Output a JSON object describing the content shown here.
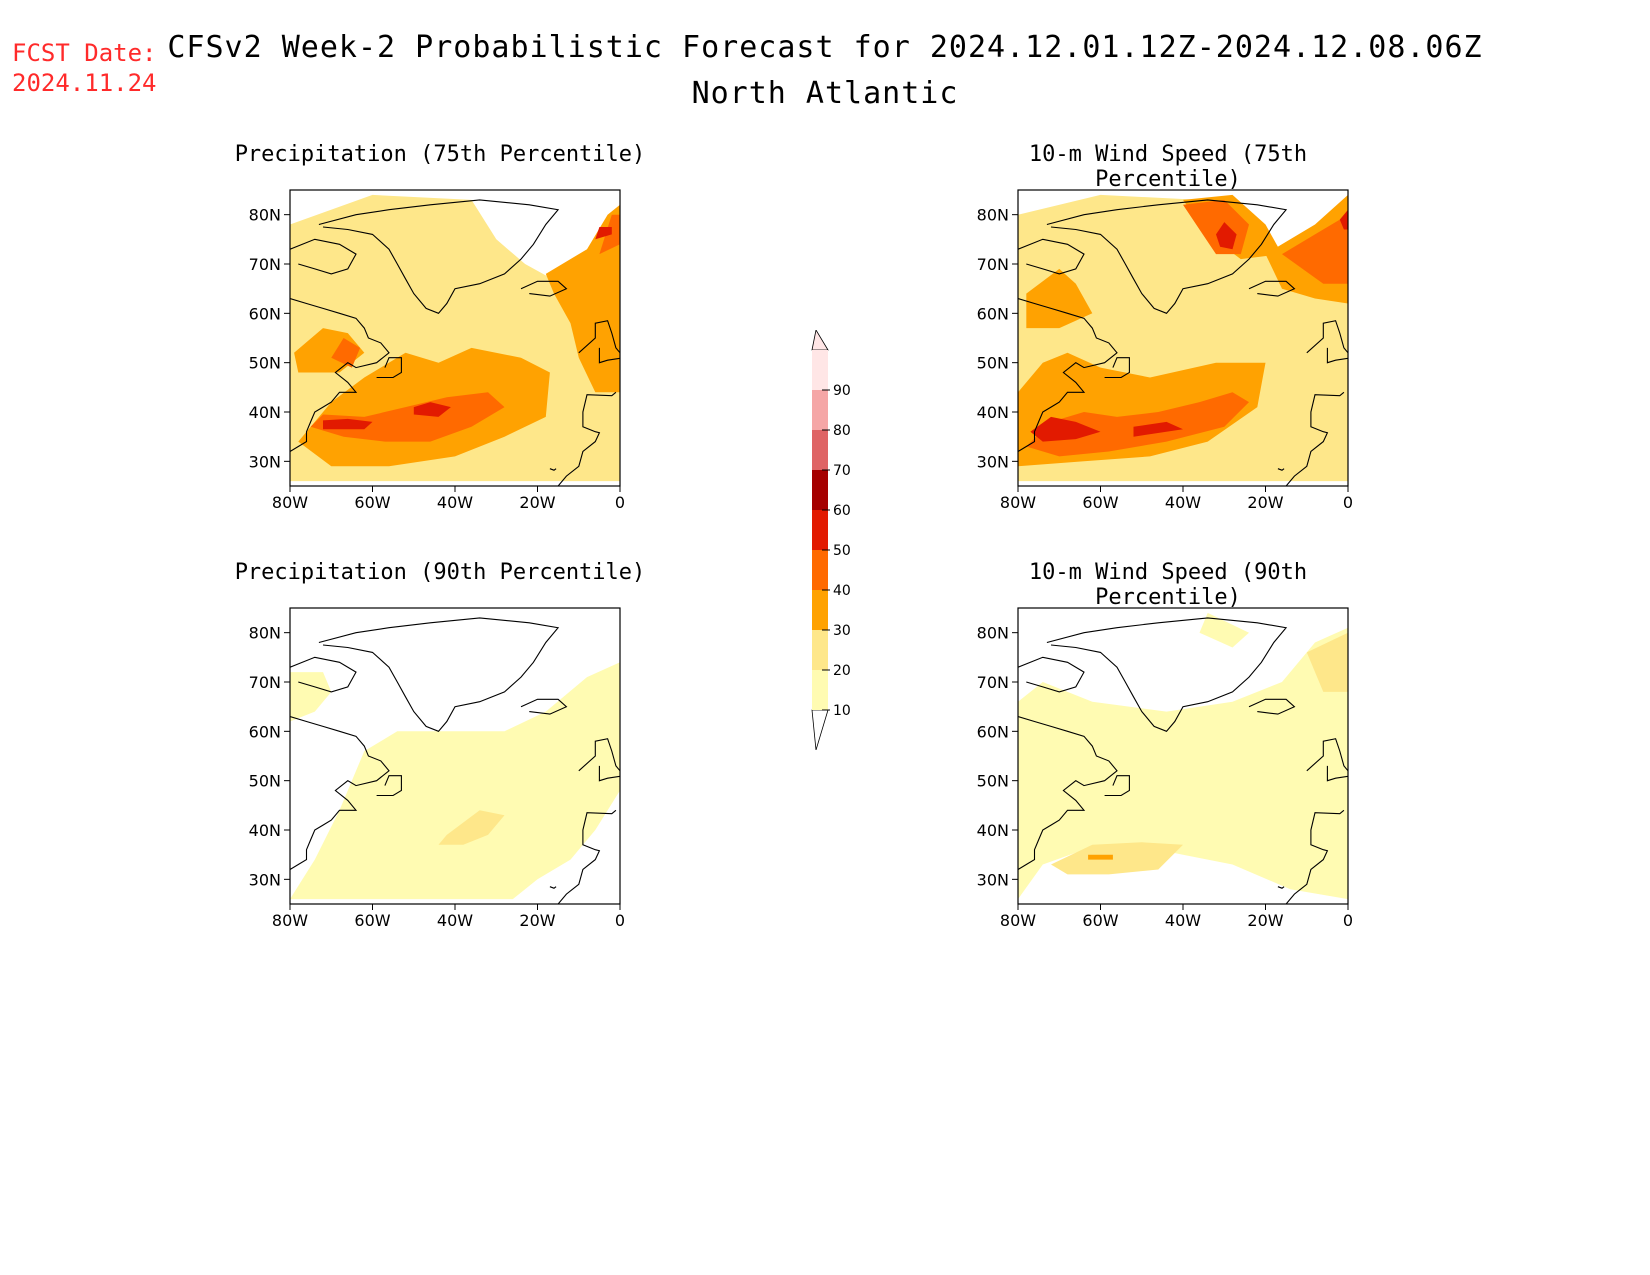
{
  "header": {
    "fcst_label": "FCST Date:",
    "fcst_date": "2024.11.24",
    "title": "CFSv2 Week-2 Probabilistic Forecast for 2024.12.01.12Z-2024.12.08.06Z",
    "subtitle": "North Atlantic"
  },
  "axes": {
    "lat_ticks": [
      "80N",
      "70N",
      "60N",
      "50N",
      "40N",
      "30N"
    ],
    "lon_ticks": [
      "80W",
      "60W",
      "40W",
      "20W",
      "0"
    ]
  },
  "panels": [
    {
      "id": "p75",
      "title": "Precipitation (75th Percentile)",
      "blobs": [
        {
          "v": 20,
          "pts": [
            [
              -80,
              26
            ],
            [
              -80,
              78
            ],
            [
              -60,
              84
            ],
            [
              -36,
              83
            ],
            [
              -30,
              75
            ],
            [
              -23,
              70
            ],
            [
              -10,
              64
            ],
            [
              0,
              72
            ],
            [
              0,
              26
            ]
          ]
        },
        {
          "v": 30,
          "pts": [
            [
              -78,
              34
            ],
            [
              -70,
              42
            ],
            [
              -62,
              47
            ],
            [
              -52,
              52
            ],
            [
              -44,
              50
            ],
            [
              -36,
              53
            ],
            [
              -24,
              51
            ],
            [
              -17,
              48
            ],
            [
              -18,
              39
            ],
            [
              -28,
              35
            ],
            [
              -40,
              31
            ],
            [
              -56,
              29
            ],
            [
              -70,
              29
            ]
          ]
        },
        {
          "v": 30,
          "pts": [
            [
              -79,
              52
            ],
            [
              -72,
              57
            ],
            [
              -66,
              56
            ],
            [
              -62,
              52
            ],
            [
              -68,
              48
            ],
            [
              -78,
              48
            ]
          ]
        },
        {
          "v": 30,
          "pts": [
            [
              -18,
              68
            ],
            [
              -8,
              73
            ],
            [
              -3,
              80
            ],
            [
              0,
              82
            ],
            [
              0,
              44
            ],
            [
              -6,
              44
            ],
            [
              -10,
              51
            ],
            [
              -12,
              58
            ],
            [
              -16,
              64
            ]
          ]
        },
        {
          "v": 40,
          "pts": [
            [
              -75,
              37
            ],
            [
              -67,
              35
            ],
            [
              -57,
              34
            ],
            [
              -46,
              34
            ],
            [
              -36,
              37
            ],
            [
              -28,
              41
            ],
            [
              -32,
              44
            ],
            [
              -42,
              43
            ],
            [
              -52,
              41
            ],
            [
              -62,
              39
            ],
            [
              -72,
              39.5
            ]
          ]
        },
        {
          "v": 40,
          "pts": [
            [
              -70,
              51
            ],
            [
              -67,
              55
            ],
            [
              -63,
              53
            ],
            [
              -65,
              49
            ]
          ]
        },
        {
          "v": 40,
          "pts": [
            [
              -5,
              72
            ],
            [
              -2,
              80
            ],
            [
              0,
              80
            ],
            [
              0,
              74
            ]
          ]
        },
        {
          "v": 50,
          "pts": [
            [
              -72,
              36.5
            ],
            [
              -62,
              36.5
            ],
            [
              -60,
              38
            ],
            [
              -66,
              38.6
            ],
            [
              -72,
              38.3
            ]
          ]
        },
        {
          "v": 50,
          "pts": [
            [
              -50,
              39.5
            ],
            [
              -44,
              39
            ],
            [
              -41,
              41
            ],
            [
              -46,
              42
            ],
            [
              -50,
              41
            ]
          ]
        },
        {
          "v": 50,
          "pts": [
            [
              -6,
              75
            ],
            [
              -2,
              76
            ],
            [
              -2,
              77.5
            ],
            [
              -5,
              77.5
            ]
          ]
        }
      ]
    },
    {
      "id": "w75",
      "title": "10-m Wind Speed (75th Percentile)",
      "blobs": [
        {
          "v": 20,
          "pts": [
            [
              -80,
              26
            ],
            [
              -80,
              80
            ],
            [
              -60,
              84
            ],
            [
              -36,
              83
            ],
            [
              -24,
              80
            ],
            [
              -18,
              74
            ],
            [
              -10,
              66
            ],
            [
              0,
              66
            ],
            [
              0,
              26
            ]
          ]
        },
        {
          "v": 30,
          "pts": [
            [
              -80,
              29
            ],
            [
              -80,
              44
            ],
            [
              -74,
              50
            ],
            [
              -68,
              52
            ],
            [
              -60,
              49
            ],
            [
              -48,
              47
            ],
            [
              -32,
              50
            ],
            [
              -20,
              50
            ],
            [
              -22,
              41
            ],
            [
              -34,
              34
            ],
            [
              -48,
              31
            ],
            [
              -64,
              30
            ]
          ]
        },
        {
          "v": 30,
          "pts": [
            [
              -78,
              64
            ],
            [
              -70,
              69
            ],
            [
              -66,
              66
            ],
            [
              -62,
              60
            ],
            [
              -70,
              57
            ],
            [
              -78,
              57
            ]
          ]
        },
        {
          "v": 30,
          "pts": [
            [
              -40,
              83
            ],
            [
              -28,
              84
            ],
            [
              -20,
              78
            ],
            [
              -16,
              72
            ],
            [
              -26,
              71
            ],
            [
              -34,
              76
            ]
          ]
        },
        {
          "v": 30,
          "pts": [
            [
              -20,
              72
            ],
            [
              -8,
              78
            ],
            [
              0,
              84
            ],
            [
              0,
              62
            ],
            [
              -8,
              63
            ],
            [
              -16,
              65
            ]
          ]
        },
        {
          "v": 40,
          "pts": [
            [
              -78,
              33
            ],
            [
              -72,
              38
            ],
            [
              -64,
              40
            ],
            [
              -56,
              39
            ],
            [
              -46,
              40
            ],
            [
              -36,
              42
            ],
            [
              -28,
              44
            ],
            [
              -24,
              42
            ],
            [
              -30,
              37
            ],
            [
              -44,
              34
            ],
            [
              -58,
              32
            ],
            [
              -70,
              31
            ]
          ]
        },
        {
          "v": 40,
          "pts": [
            [
              -40,
              82
            ],
            [
              -30,
              83
            ],
            [
              -24,
              78
            ],
            [
              -26,
              72
            ],
            [
              -32,
              72
            ],
            [
              -36,
              77
            ]
          ]
        },
        {
          "v": 40,
          "pts": [
            [
              -16,
              72
            ],
            [
              -8,
              76
            ],
            [
              0,
              80
            ],
            [
              0,
              66
            ],
            [
              -6,
              66
            ]
          ]
        },
        {
          "v": 50,
          "pts": [
            [
              -77,
              36
            ],
            [
              -72,
              39
            ],
            [
              -66,
              38
            ],
            [
              -60,
              36
            ],
            [
              -66,
              34.5
            ],
            [
              -74,
              34
            ]
          ]
        },
        {
          "v": 50,
          "pts": [
            [
              -52,
              35
            ],
            [
              -40,
              36.5
            ],
            [
              -44,
              38
            ],
            [
              -52,
              37
            ]
          ]
        },
        {
          "v": 50,
          "pts": [
            [
              -30,
              78.5
            ],
            [
              -27,
              76
            ],
            [
              -28,
              73
            ],
            [
              -31,
              73.5
            ],
            [
              -32,
              76
            ]
          ]
        },
        {
          "v": 50,
          "pts": [
            [
              -2,
              79
            ],
            [
              0,
              81
            ],
            [
              0,
              77
            ],
            [
              -1,
              77
            ]
          ]
        }
      ]
    },
    {
      "id": "p90",
      "title": "Precipitation (90th Percentile)",
      "blobs": [
        {
          "v": 10,
          "pts": [
            [
              -80,
              26
            ],
            [
              -74,
              34
            ],
            [
              -68,
              44
            ],
            [
              -62,
              56
            ],
            [
              -54,
              60
            ],
            [
              -40,
              60
            ],
            [
              -28,
              60
            ],
            [
              -18,
              64
            ],
            [
              -8,
              71
            ],
            [
              0,
              74
            ],
            [
              0,
              48
            ],
            [
              -6,
              40
            ],
            [
              -12,
              34
            ],
            [
              -20,
              30
            ],
            [
              -26,
              26
            ]
          ]
        },
        {
          "v": 10,
          "pts": [
            [
              -80,
              72
            ],
            [
              -72,
              72
            ],
            [
              -70,
              68
            ],
            [
              -74,
              64
            ],
            [
              -80,
              62
            ]
          ]
        },
        {
          "v": 20,
          "pts": [
            [
              -42,
              39
            ],
            [
              -34,
              44
            ],
            [
              -28,
              43
            ],
            [
              -32,
              39
            ],
            [
              -38,
              37
            ],
            [
              -44,
              37
            ]
          ]
        }
      ]
    },
    {
      "id": "w90",
      "title": "10-m Wind Speed (90th Percentile)",
      "blobs": [
        {
          "v": 10,
          "pts": [
            [
              -80,
              26
            ],
            [
              -80,
              66
            ],
            [
              -74,
              70
            ],
            [
              -62,
              66
            ],
            [
              -44,
              64
            ],
            [
              -28,
              66
            ],
            [
              -16,
              70
            ],
            [
              -8,
              78
            ],
            [
              0,
              81
            ],
            [
              0,
              26
            ],
            [
              -14,
              28
            ],
            [
              -28,
              33
            ],
            [
              -40,
              35
            ],
            [
              -52,
              37
            ],
            [
              -64,
              36
            ],
            [
              -74,
              33
            ]
          ]
        },
        {
          "v": 10,
          "pts": [
            [
              -34,
              84
            ],
            [
              -24,
              80
            ],
            [
              -28,
              77
            ],
            [
              -36,
              80
            ]
          ]
        },
        {
          "v": 20,
          "pts": [
            [
              -72,
              33
            ],
            [
              -62,
              37
            ],
            [
              -50,
              37.5
            ],
            [
              -40,
              37
            ],
            [
              -46,
              32
            ],
            [
              -58,
              31
            ],
            [
              -68,
              31
            ]
          ]
        },
        {
          "v": 20,
          "pts": [
            [
              -10,
              76
            ],
            [
              0,
              80
            ],
            [
              0,
              68
            ],
            [
              -6,
              68
            ]
          ]
        },
        {
          "v": 30,
          "pts": [
            [
              -63,
              35
            ],
            [
              -57,
              35
            ],
            [
              -57,
              34
            ],
            [
              -63,
              34
            ]
          ]
        }
      ]
    }
  ],
  "colorbar": {
    "values": [
      10,
      20,
      30,
      40,
      50,
      60,
      70,
      80,
      90
    ],
    "labels": [
      "10",
      "20",
      "30",
      "40",
      "50",
      "60",
      "70",
      "80",
      "90"
    ],
    "colors": [
      "#fffbb2",
      "#fee78a",
      "#ffa201",
      "#ff6a00",
      "#e21a00",
      "#a50000",
      "#df6465",
      "#f5a6a6",
      "#ffe6e6"
    ]
  }
}
